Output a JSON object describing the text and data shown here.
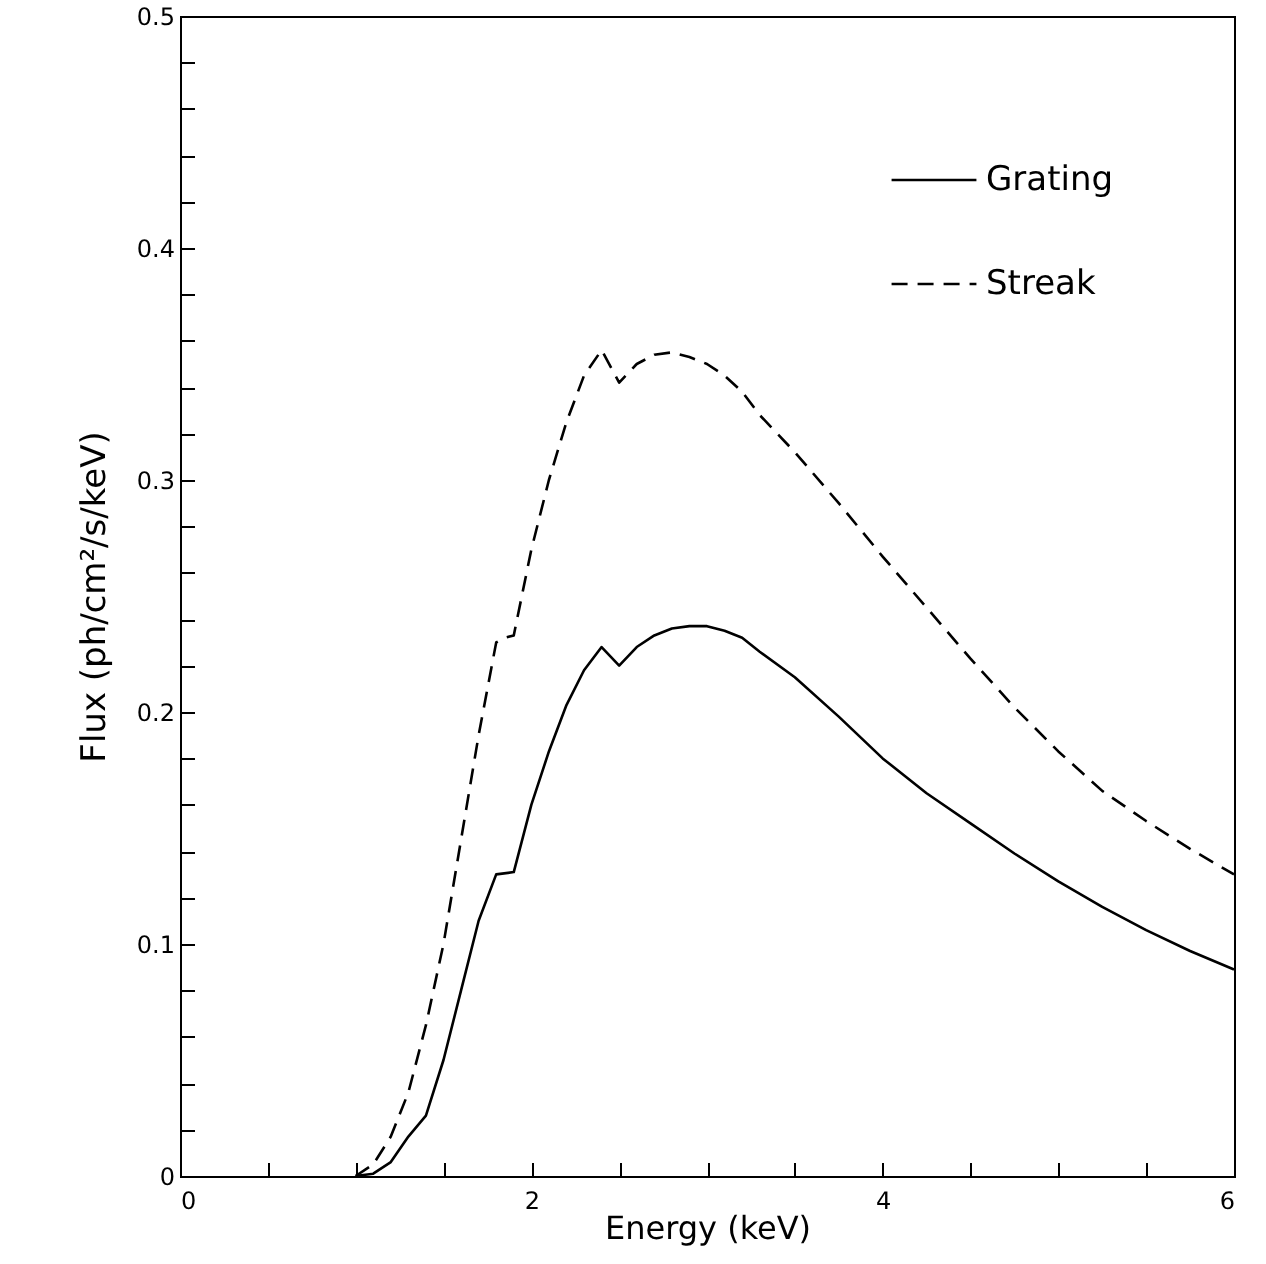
{
  "chart_data": {
    "type": "line",
    "xlabel": "Energy (keV)",
    "ylabel": "Flux (ph/cm²/s/keV)",
    "xlim": [
      0,
      6
    ],
    "ylim": [
      0,
      0.5
    ],
    "xticks": [
      0,
      {
        "value": 0.5,
        "label": null
      },
      {
        "value": 1,
        "label": null
      },
      {
        "value": 1.5,
        "label": null
      },
      2,
      {
        "value": 2.5,
        "label": null
      },
      {
        "value": 3,
        "label": null
      },
      {
        "value": 3.5,
        "label": null
      },
      4,
      {
        "value": 4.5,
        "label": null
      },
      {
        "value": 5,
        "label": null
      },
      {
        "value": 5.5,
        "label": null
      },
      6
    ],
    "yticks": [
      0,
      {
        "value": 0.02,
        "label": null
      },
      {
        "value": 0.04,
        "label": null
      },
      {
        "value": 0.06,
        "label": null
      },
      {
        "value": 0.08,
        "label": null
      },
      0.1,
      {
        "value": 0.12,
        "label": null
      },
      {
        "value": 0.14,
        "label": null
      },
      {
        "value": 0.16,
        "label": null
      },
      {
        "value": 0.18,
        "label": null
      },
      0.2,
      {
        "value": 0.22,
        "label": null
      },
      {
        "value": 0.24,
        "label": null
      },
      {
        "value": 0.26,
        "label": null
      },
      {
        "value": 0.28,
        "label": null
      },
      0.3,
      {
        "value": 0.32,
        "label": null
      },
      {
        "value": 0.34,
        "label": null
      },
      {
        "value": 0.36,
        "label": null
      },
      {
        "value": 0.38,
        "label": null
      },
      0.4,
      {
        "value": 0.42,
        "label": null
      },
      {
        "value": 0.44,
        "label": null
      },
      {
        "value": 0.46,
        "label": null
      },
      {
        "value": 0.48,
        "label": null
      },
      0.5
    ],
    "legend": "top right",
    "grid": false,
    "marker": "none",
    "series": [
      {
        "name": "Grating",
        "color": "#000000",
        "line_style": "solid",
        "x": [
          1.0,
          1.1,
          1.2,
          1.3,
          1.4,
          1.5,
          1.6,
          1.7,
          1.8,
          1.9,
          2.0,
          2.1,
          2.2,
          2.3,
          2.4,
          2.5,
          2.6,
          2.7,
          2.8,
          2.9,
          3.0,
          3.1,
          3.2,
          3.3,
          3.5,
          3.75,
          4.0,
          4.25,
          4.5,
          4.75,
          5.0,
          5.25,
          5.5,
          5.75,
          6.0
        ],
        "values": [
          0,
          0.001,
          0.006,
          0.017,
          0.026,
          0.05,
          0.08,
          0.11,
          0.13,
          0.131,
          0.16,
          0.183,
          0.203,
          0.218,
          0.228,
          0.22,
          0.228,
          0.233,
          0.236,
          0.237,
          0.237,
          0.235,
          0.232,
          0.226,
          0.215,
          0.198,
          0.18,
          0.165,
          0.152,
          0.139,
          0.127,
          0.116,
          0.106,
          0.097,
          0.089
        ]
      },
      {
        "name": "Streak",
        "color": "#000000",
        "line_style": "dashed",
        "x": [
          1.0,
          1.1,
          1.2,
          1.3,
          1.4,
          1.5,
          1.6,
          1.7,
          1.8,
          1.85,
          1.9,
          2.0,
          2.1,
          2.2,
          2.3,
          2.4,
          2.5,
          2.6,
          2.7,
          2.8,
          2.9,
          3.0,
          3.1,
          3.2,
          3.3,
          3.5,
          3.75,
          4.0,
          4.25,
          4.5,
          4.75,
          5.0,
          5.25,
          5.5,
          5.75,
          6.0
        ],
        "values": [
          0,
          0.005,
          0.017,
          0.036,
          0.065,
          0.1,
          0.145,
          0.19,
          0.23,
          0.232,
          0.233,
          0.27,
          0.3,
          0.325,
          0.345,
          0.356,
          0.342,
          0.35,
          0.354,
          0.355,
          0.353,
          0.35,
          0.345,
          0.338,
          0.328,
          0.312,
          0.29,
          0.267,
          0.245,
          0.223,
          0.202,
          0.183,
          0.166,
          0.153,
          0.141,
          0.13
        ]
      }
    ]
  }
}
